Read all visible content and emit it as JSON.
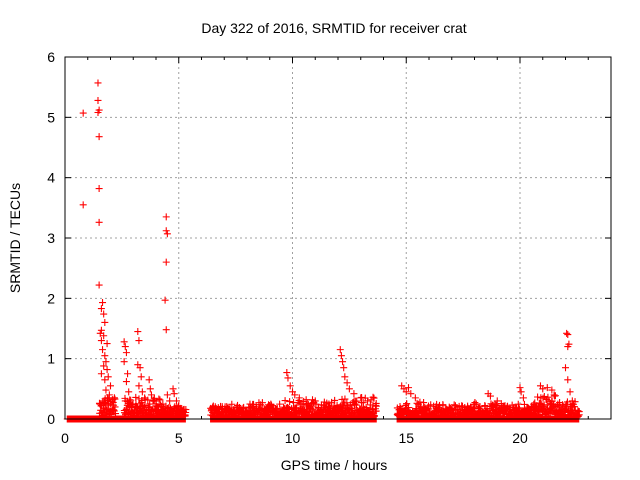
{
  "chart_data": {
    "type": "scatter",
    "title": "Day 322 of 2016, SRMTID for receiver crat",
    "xlabel": "GPS time / hours",
    "ylabel": "SRMTID / TECUs",
    "xlim": [
      0,
      24
    ],
    "ylim": [
      0,
      6
    ],
    "xticks": [
      0,
      5,
      10,
      15,
      20
    ],
    "yticks": [
      0,
      1,
      2,
      3,
      4,
      5,
      6
    ],
    "grid": true,
    "marker": "+",
    "series": [
      {
        "name": "SRMTID",
        "color": "#ff0000",
        "points": [
          [
            0.8,
            5.07
          ],
          [
            0.8,
            3.55
          ],
          [
            1.45,
            5.57
          ],
          [
            1.45,
            5.28
          ],
          [
            1.5,
            5.12
          ],
          [
            1.45,
            5.08
          ],
          [
            1.5,
            4.68
          ],
          [
            1.5,
            3.82
          ],
          [
            1.5,
            3.26
          ],
          [
            1.5,
            2.22
          ],
          [
            1.65,
            1.93
          ],
          [
            1.6,
            1.83
          ],
          [
            1.7,
            1.74
          ],
          [
            1.75,
            1.6
          ],
          [
            1.6,
            1.47
          ],
          [
            1.55,
            1.42
          ],
          [
            1.7,
            1.38
          ],
          [
            1.6,
            1.3
          ],
          [
            1.85,
            1.25
          ],
          [
            1.65,
            1.15
          ],
          [
            1.75,
            1.05
          ],
          [
            1.8,
            0.95
          ],
          [
            1.7,
            0.88
          ],
          [
            1.85,
            0.82
          ],
          [
            1.6,
            0.75
          ],
          [
            1.9,
            0.7
          ],
          [
            1.75,
            0.65
          ],
          [
            2.0,
            0.55
          ],
          [
            1.8,
            0.48
          ],
          [
            1.95,
            0.4
          ],
          [
            2.1,
            0.32
          ],
          [
            1.9,
            0.25
          ],
          [
            2.2,
            0.2
          ],
          [
            2.6,
            1.28
          ],
          [
            2.65,
            1.2
          ],
          [
            2.7,
            1.1
          ],
          [
            2.6,
            0.95
          ],
          [
            2.75,
            0.75
          ],
          [
            2.7,
            0.62
          ],
          [
            2.8,
            0.45
          ],
          [
            2.65,
            0.3
          ],
          [
            2.9,
            0.2
          ],
          [
            3.2,
            1.45
          ],
          [
            3.25,
            1.3
          ],
          [
            3.2,
            0.9
          ],
          [
            3.3,
            0.85
          ],
          [
            3.35,
            0.7
          ],
          [
            3.25,
            0.55
          ],
          [
            3.4,
            0.45
          ],
          [
            3.5,
            0.35
          ],
          [
            3.3,
            0.25
          ],
          [
            3.7,
            0.65
          ],
          [
            3.75,
            0.5
          ],
          [
            3.8,
            0.4
          ],
          [
            3.9,
            0.3
          ],
          [
            4.0,
            0.25
          ],
          [
            4.1,
            0.2
          ],
          [
            4.45,
            3.35
          ],
          [
            4.45,
            3.12
          ],
          [
            4.5,
            3.07
          ],
          [
            4.45,
            2.6
          ],
          [
            4.4,
            1.97
          ],
          [
            4.45,
            1.48
          ],
          [
            4.5,
            0.4
          ],
          [
            4.6,
            0.3
          ],
          [
            4.75,
            0.5
          ],
          [
            4.8,
            0.42
          ],
          [
            4.9,
            0.3
          ],
          [
            5.0,
            0.22
          ],
          [
            5.1,
            0.15
          ],
          [
            9.75,
            0.77
          ],
          [
            9.8,
            0.68
          ],
          [
            9.9,
            0.55
          ],
          [
            10.0,
            0.45
          ],
          [
            10.1,
            0.4
          ],
          [
            10.3,
            0.35
          ],
          [
            10.6,
            0.32
          ],
          [
            11.0,
            0.3
          ],
          [
            11.4,
            0.28
          ],
          [
            12.1,
            1.15
          ],
          [
            12.15,
            1.05
          ],
          [
            12.2,
            0.95
          ],
          [
            12.25,
            0.85
          ],
          [
            12.3,
            0.7
          ],
          [
            12.4,
            0.6
          ],
          [
            12.5,
            0.5
          ],
          [
            12.7,
            0.42
          ],
          [
            13.0,
            0.35
          ],
          [
            13.3,
            0.3
          ],
          [
            14.8,
            0.55
          ],
          [
            14.9,
            0.5
          ],
          [
            15.0,
            0.45
          ],
          [
            15.1,
            0.52
          ],
          [
            15.2,
            0.42
          ],
          [
            15.4,
            0.35
          ],
          [
            15.6,
            0.28
          ],
          [
            18.6,
            0.42
          ],
          [
            18.7,
            0.38
          ],
          [
            19.0,
            0.3
          ],
          [
            20.0,
            0.52
          ],
          [
            20.05,
            0.45
          ],
          [
            20.15,
            0.35
          ],
          [
            20.9,
            0.55
          ],
          [
            21.0,
            0.5
          ],
          [
            21.2,
            0.52
          ],
          [
            21.4,
            0.48
          ],
          [
            21.5,
            0.4
          ],
          [
            22.05,
            1.42
          ],
          [
            22.1,
            1.4
          ],
          [
            22.15,
            1.24
          ],
          [
            22.1,
            1.2
          ],
          [
            22.0,
            0.85
          ],
          [
            22.1,
            0.65
          ],
          [
            22.2,
            0.45
          ],
          [
            22.3,
            0.3
          ]
        ],
        "bands": [
          {
            "x": [
              0.1,
              1.5
            ],
            "max": 0.0,
            "baseline": 0.0
          },
          {
            "x": [
              1.5,
              2.2
            ],
            "max": 0.4,
            "baseline": 0.2
          },
          {
            "x": [
              2.2,
              2.6
            ],
            "max": 0.0,
            "baseline": 0.0
          },
          {
            "x": [
              2.6,
              3.1
            ],
            "max": 0.4,
            "baseline": 0.15
          },
          {
            "x": [
              3.1,
              4.3
            ],
            "max": 0.4,
            "baseline": 0.12
          },
          {
            "x": [
              4.3,
              5.3
            ],
            "max": 0.3,
            "baseline": 0.08
          },
          {
            "x": [
              6.4,
              9.6
            ],
            "max": 0.3,
            "baseline": 0.15
          },
          {
            "x": [
              9.6,
              12.0
            ],
            "max": 0.35,
            "baseline": 0.12
          },
          {
            "x": [
              12.0,
              13.7
            ],
            "max": 0.4,
            "baseline": 0.12
          },
          {
            "x": [
              14.6,
              17.5
            ],
            "max": 0.3,
            "baseline": 0.08
          },
          {
            "x": [
              17.5,
              20.5
            ],
            "max": 0.3,
            "baseline": 0.1
          },
          {
            "x": [
              20.5,
              21.8
            ],
            "max": 0.45,
            "baseline": 0.12
          },
          {
            "x": [
              21.8,
              22.6
            ],
            "max": 0.3,
            "baseline": 0.06
          }
        ],
        "gaps": [
          [
            5.3,
            6.4
          ],
          [
            13.7,
            14.6
          ]
        ]
      }
    ]
  }
}
